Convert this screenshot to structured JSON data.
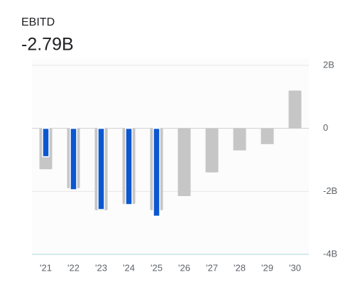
{
  "chart_data": {
    "type": "bar",
    "title": "EBITD",
    "subtitle": "-2.79B",
    "categories": [
      "'21",
      "'22",
      "'23",
      "'24",
      "'25",
      "'26",
      "'27",
      "'28",
      "'29",
      "'30"
    ],
    "series": [
      {
        "color": "#c6c6c6",
        "values": [
          -1.3,
          -1.9,
          -2.6,
          -2.4,
          -2.6,
          -2.15,
          -1.4,
          -0.7,
          -0.5,
          1.2
        ]
      },
      {
        "color": "#0b57d0",
        "values": [
          -0.9,
          -1.95,
          -2.58,
          -2.42,
          -2.79,
          null,
          null,
          null,
          null,
          null
        ]
      }
    ],
    "ylim": [
      -4,
      2
    ],
    "yticks": [
      {
        "value": 2,
        "label": "2B"
      },
      0,
      {
        "value": -2,
        "label": "-2B"
      },
      {
        "value": -4,
        "label": "-4B"
      }
    ],
    "grid": true
  }
}
